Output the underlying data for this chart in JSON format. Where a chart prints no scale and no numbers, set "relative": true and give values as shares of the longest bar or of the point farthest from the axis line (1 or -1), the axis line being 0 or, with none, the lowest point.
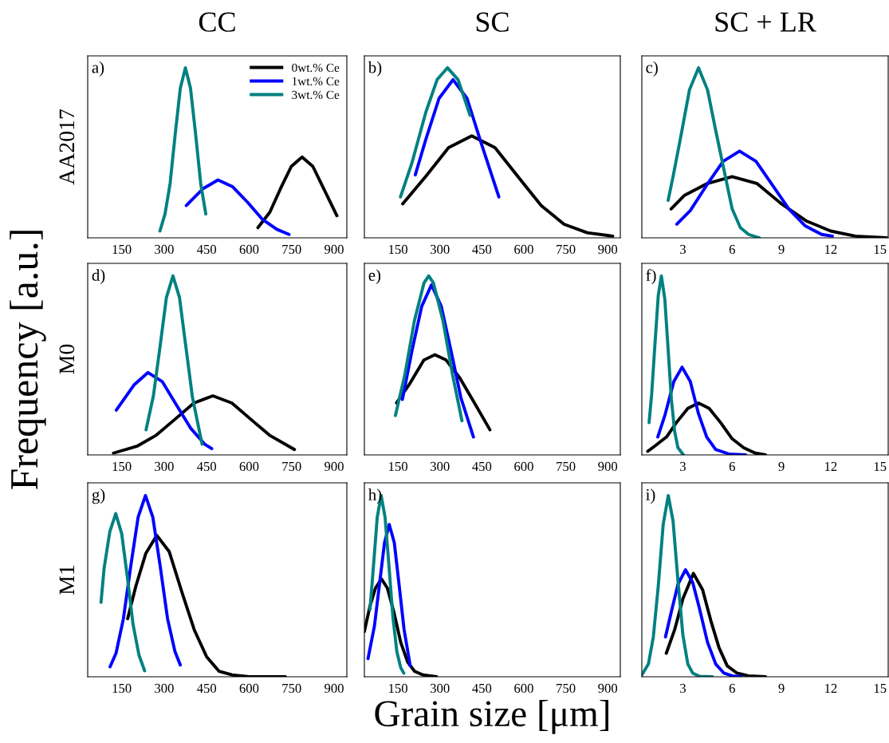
{
  "chart_data": [
    {
      "type": "line",
      "title": "CC",
      "ylabel": "AA2017",
      "annotations": [
        "a)"
      ],
      "relative": true,
      "xlim": [
        30,
        945
      ],
      "xticks": [
        150,
        300,
        450,
        600,
        750,
        900
      ],
      "tick_labels": "x",
      "legend": "top right",
      "series": [
        {
          "name": "0wt.% Ce",
          "color": "#000000",
          "x": [
            631,
            673,
            711,
            749,
            787,
            825,
            863,
            910
          ],
          "values": [
            0.06,
            0.15,
            0.29,
            0.42,
            0.475,
            0.42,
            0.29,
            0.13
          ]
        },
        {
          "name": "1wt.% Ce",
          "color": "#0000ff",
          "x": [
            378,
            438,
            490,
            542,
            594,
            646,
            698,
            741
          ],
          "values": [
            0.19,
            0.29,
            0.34,
            0.3,
            0.21,
            0.11,
            0.05,
            0.02
          ]
        },
        {
          "name": "3wt.% Ce",
          "color": "#008080",
          "x": [
            285,
            303,
            321,
            339,
            357,
            375,
            393,
            411,
            429,
            447
          ],
          "values": [
            0.04,
            0.14,
            0.32,
            0.61,
            0.88,
            1,
            0.88,
            0.61,
            0.32,
            0.14
          ]
        }
      ]
    },
    {
      "type": "line",
      "title": "SC",
      "annotations": [
        "b)"
      ],
      "relative": true,
      "xlim": [
        30,
        945
      ],
      "xticks": [
        150,
        300,
        450,
        600,
        750,
        900
      ],
      "tick_labels": "x",
      "series": [
        {
          "color": "#000000",
          "x": [
            167,
            249,
            331,
            414,
            497,
            579,
            662,
            744,
            827,
            918
          ],
          "values": [
            0.2,
            0.36,
            0.53,
            0.6,
            0.53,
            0.36,
            0.19,
            0.08,
            0.03,
            0.01
          ]
        },
        {
          "color": "#0000ff",
          "x": [
            212,
            250,
            297,
            347,
            397,
            447,
            511
          ],
          "values": [
            0.37,
            0.58,
            0.82,
            0.93,
            0.82,
            0.56,
            0.24
          ]
        },
        {
          "color": "#008080",
          "x": [
            159,
            200,
            250,
            290,
            327,
            365,
            408
          ],
          "values": [
            0.24,
            0.44,
            0.74,
            0.93,
            1,
            0.93,
            0.72
          ]
        }
      ]
    },
    {
      "type": "line",
      "title": "SC + LR",
      "annotations": [
        "c)"
      ],
      "relative": true,
      "xlim": [
        0.5,
        15.5
      ],
      "xticks": [
        3,
        6,
        9,
        12,
        15
      ],
      "tick_labels": "x",
      "series": [
        {
          "color": "#000000",
          "x": [
            2.28,
            3.1,
            4.5,
            6.0,
            7.5,
            9.0,
            10.5,
            12.0,
            13.5,
            15.4
          ],
          "values": [
            0.17,
            0.25,
            0.32,
            0.36,
            0.32,
            0.2,
            0.1,
            0.04,
            0.01,
            0
          ]
        },
        {
          "color": "#0000ff",
          "x": [
            2.63,
            3.45,
            4.45,
            5.45,
            6.45,
            7.45,
            8.45,
            9.45,
            10.45,
            11.45,
            12.1
          ],
          "values": [
            0.08,
            0.16,
            0.31,
            0.45,
            0.51,
            0.45,
            0.31,
            0.17,
            0.07,
            0.02,
            0.01
          ]
        },
        {
          "color": "#008080",
          "x": [
            2.1,
            2.4,
            2.9,
            3.4,
            3.95,
            4.5,
            5.0,
            5.5,
            6.0,
            6.5,
            7.0,
            7.66
          ],
          "values": [
            0.22,
            0.36,
            0.61,
            0.87,
            1,
            0.87,
            0.63,
            0.4,
            0.17,
            0.06,
            0.02,
            0
          ]
        }
      ]
    },
    {
      "type": "line",
      "ylabel": "M0",
      "annotations": [
        "d)",
        "Frequency [a.u.]"
      ],
      "relative": true,
      "xlim": [
        30,
        945
      ],
      "xticks": [
        150,
        300,
        450,
        600,
        750,
        900
      ],
      "tick_labels": "x",
      "series": [
        {
          "color": "#000000",
          "x": [
            121,
            206,
            272,
            339,
            405,
            472,
            539,
            605,
            672,
            760
          ],
          "values": [
            0.01,
            0.05,
            0.11,
            0.2,
            0.29,
            0.33,
            0.29,
            0.2,
            0.11,
            0.03
          ]
        },
        {
          "color": "#0000ff",
          "x": [
            131,
            193,
            243,
            293,
            343,
            393,
            443,
            468
          ],
          "values": [
            0.25,
            0.39,
            0.46,
            0.41,
            0.28,
            0.15,
            0.06,
            0.035
          ]
        },
        {
          "color": "#008080",
          "x": [
            236,
            262,
            285,
            308,
            331,
            354,
            377,
            400,
            434
          ],
          "values": [
            0.14,
            0.33,
            0.6,
            0.88,
            1,
            0.88,
            0.6,
            0.32,
            0.06
          ]
        }
      ]
    },
    {
      "type": "line",
      "annotations": [
        "e)"
      ],
      "relative": true,
      "xlim": [
        30,
        945
      ],
      "xticks": [
        150,
        300,
        450,
        600,
        750,
        900
      ],
      "tick_labels": "x",
      "series": [
        {
          "color": "#000000",
          "x": [
            145,
            193,
            243,
            282,
            322,
            371,
            420,
            479
          ],
          "values": [
            0.29,
            0.4,
            0.53,
            0.56,
            0.53,
            0.43,
            0.3,
            0.14
          ]
        },
        {
          "color": "#0000ff",
          "x": [
            166,
            200,
            235,
            270,
            305,
            340,
            375,
            420
          ],
          "values": [
            0.31,
            0.58,
            0.83,
            0.95,
            0.83,
            0.58,
            0.32,
            0.1
          ]
        },
        {
          "color": "#008080",
          "x": [
            141,
            175,
            209,
            243,
            260,
            277,
            311,
            345,
            379
          ],
          "values": [
            0.22,
            0.45,
            0.75,
            0.96,
            1,
            0.96,
            0.75,
            0.45,
            0.19
          ]
        }
      ]
    },
    {
      "type": "line",
      "annotations": [
        "f)"
      ],
      "relative": true,
      "xlim": [
        0.5,
        15.5
      ],
      "xticks": [
        3,
        6,
        9,
        12,
        15
      ],
      "tick_labels": "x",
      "series": [
        {
          "color": "#000000",
          "x": [
            0.86,
            1.3,
            2.0,
            2.6,
            3.3,
            3.95,
            4.6,
            5.3,
            6.0,
            6.7,
            7.4,
            8.03
          ],
          "values": [
            0.02,
            0.05,
            0.1,
            0.18,
            0.26,
            0.29,
            0.26,
            0.18,
            0.09,
            0.04,
            0.01,
            0
          ]
        },
        {
          "color": "#0000ff",
          "x": [
            1.47,
            1.9,
            2.45,
            2.95,
            3.45,
            3.95,
            4.45,
            5.0,
            5.8,
            6.82
          ],
          "values": [
            0.1,
            0.22,
            0.41,
            0.49,
            0.41,
            0.23,
            0.1,
            0.03,
            0.005,
            0
          ]
        },
        {
          "color": "#008080",
          "x": [
            0.94,
            1.1,
            1.3,
            1.5,
            1.69,
            1.9,
            2.1,
            2.3,
            2.5,
            2.7,
            3.03
          ],
          "values": [
            0.18,
            0.34,
            0.62,
            0.89,
            1,
            0.87,
            0.59,
            0.31,
            0.13,
            0.04,
            0
          ]
        }
      ]
    },
    {
      "type": "line",
      "ylabel": "M1",
      "annotations": [
        "g)"
      ],
      "relative": true,
      "xlim": [
        30,
        945
      ],
      "xticks": [
        150,
        300,
        450,
        600,
        750,
        900
      ],
      "tick_labels": "x",
      "series": [
        {
          "color": "#000000",
          "x": [
            171,
            200,
            235,
            274,
            318,
            362,
            406,
            450,
            494,
            540,
            600,
            728
          ],
          "values": [
            0.32,
            0.5,
            0.68,
            0.78,
            0.69,
            0.47,
            0.26,
            0.11,
            0.03,
            0.01,
            0,
            0
          ]
        },
        {
          "color": "#0000ff",
          "x": [
            109,
            130,
            156,
            182,
            208,
            234,
            260,
            286,
            312,
            338,
            357
          ],
          "values": [
            0.055,
            0.13,
            0.32,
            0.61,
            0.88,
            1,
            0.88,
            0.61,
            0.32,
            0.14,
            0.065
          ]
        },
        {
          "color": "#008080",
          "x": [
            77,
            88,
            108,
            129,
            150,
            170,
            190,
            211,
            231
          ],
          "values": [
            0.41,
            0.6,
            0.8,
            0.9,
            0.79,
            0.55,
            0.29,
            0.12,
            0.033
          ]
        }
      ]
    },
    {
      "type": "line",
      "xlabel": "Grain size [μm]",
      "annotations": [
        "h)"
      ],
      "relative": true,
      "xlim": [
        30,
        945
      ],
      "xticks": [
        150,
        300,
        450,
        600,
        750,
        900
      ],
      "tick_labels": "x",
      "series": [
        {
          "color": "#000000",
          "x": [
            30,
            50,
            70,
            91,
            112,
            135,
            160,
            185,
            210,
            240,
            288
          ],
          "values": [
            0.25,
            0.39,
            0.49,
            0.54,
            0.49,
            0.36,
            0.19,
            0.08,
            0.03,
            0.01,
            0
          ]
        },
        {
          "color": "#0000ff",
          "x": [
            43,
            66,
            84,
            102,
            119,
            137,
            154,
            172,
            194
          ],
          "values": [
            0.1,
            0.28,
            0.51,
            0.74,
            0.84,
            0.74,
            0.51,
            0.26,
            0.06
          ]
        },
        {
          "color": "#008080",
          "x": [
            50,
            62,
            76,
            90,
            104,
            118,
            132,
            146,
            160,
            171
          ],
          "values": [
            0.37,
            0.6,
            0.88,
            1,
            0.88,
            0.61,
            0.33,
            0.14,
            0.05,
            0.02
          ]
        }
      ]
    },
    {
      "type": "line",
      "annotations": [
        "i)"
      ],
      "relative": true,
      "xlim": [
        0.5,
        15.5
      ],
      "xticks": [
        3,
        6,
        9,
        12,
        15
      ],
      "tick_labels": "x",
      "series": [
        {
          "color": "#000000",
          "x": [
            1.99,
            2.5,
            3.0,
            3.64,
            4.2,
            4.7,
            5.2,
            5.7,
            6.3,
            7.0,
            8.03
          ],
          "values": [
            0.13,
            0.26,
            0.43,
            0.57,
            0.48,
            0.31,
            0.16,
            0.06,
            0.02,
            0.005,
            0
          ]
        },
        {
          "color": "#0000ff",
          "x": [
            1.94,
            2.3,
            2.7,
            3.16,
            3.6,
            4.0,
            4.5,
            5.0,
            5.5,
            6.0,
            6.58
          ],
          "values": [
            0.22,
            0.36,
            0.51,
            0.59,
            0.52,
            0.38,
            0.19,
            0.07,
            0.02,
            0.005,
            0
          ]
        },
        {
          "color": "#008080",
          "x": [
            0.5,
            0.9,
            1.2,
            1.5,
            1.8,
            2.11,
            2.4,
            2.7,
            3.0,
            3.3,
            3.6,
            4.0,
            4.8
          ],
          "values": [
            0.01,
            0.07,
            0.22,
            0.5,
            0.84,
            1,
            0.86,
            0.53,
            0.23,
            0.07,
            0.02,
            0.003,
            0
          ]
        }
      ]
    }
  ]
}
